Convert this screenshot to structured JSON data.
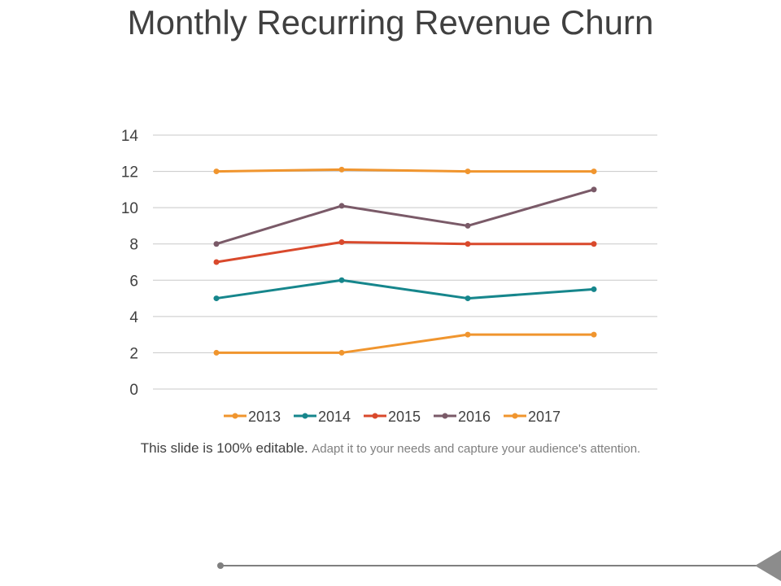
{
  "slide": {
    "title": "Monthly Recurring Revenue Churn",
    "caption_bold": "This slide is 100% editable.",
    "caption_light": "Adapt it to your needs and capture your audience's attention."
  },
  "colors": {
    "grid": "#c8c8c8",
    "tick_text": "#404040",
    "footer_line": "#7f7f7f",
    "footer_arrow": "#8c8c8c"
  },
  "chart_data": {
    "type": "line",
    "title": "",
    "xlabel": "",
    "ylabel": "",
    "categories": [
      "",
      "",
      "",
      ""
    ],
    "ylim": [
      0,
      14
    ],
    "yticks": [
      0,
      2,
      4,
      6,
      8,
      10,
      12,
      14
    ],
    "grid": true,
    "legend_position": "bottom",
    "series": [
      {
        "name": "2013",
        "color": "#f0952e",
        "values": [
          2,
          2,
          3,
          3
        ]
      },
      {
        "name": "2014",
        "color": "#16868c",
        "values": [
          5,
          6,
          5,
          5.5
        ]
      },
      {
        "name": "2015",
        "color": "#d9492c",
        "values": [
          7,
          8.1,
          8,
          8
        ]
      },
      {
        "name": "2016",
        "color": "#7a5a68",
        "values": [
          8,
          10.1,
          9,
          11
        ]
      },
      {
        "name": "2017",
        "color": "#f0952e",
        "values": [
          12,
          12.1,
          12,
          12
        ]
      }
    ]
  }
}
